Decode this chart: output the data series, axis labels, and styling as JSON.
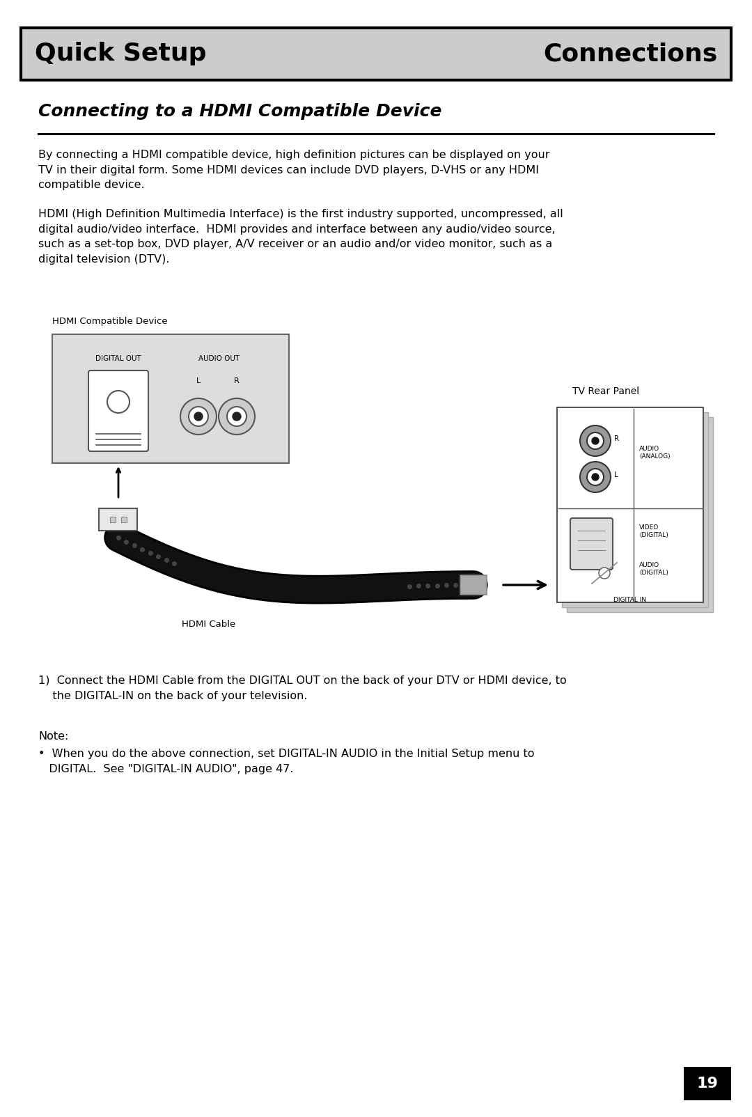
{
  "page_bg": "#ffffff",
  "header_bg": "#cccccc",
  "header_border": "#000000",
  "header_left": "Quick Setup",
  "header_right": "Connections",
  "header_fontsize": 26,
  "section_title": "Connecting to a HDMI Compatible Device",
  "section_title_fontsize": 18,
  "body_fontsize": 11.5,
  "para1": "By connecting a HDMI compatible device, high definition pictures can be displayed on your\nTV in their digital form. Some HDMI devices can include DVD players, D-VHS or any HDMI\ncompatible device.",
  "para2": "HDMI (High Definition Multimedia Interface) is the first industry supported, uncompressed, all\ndigital audio/video interface.  HDMI provides and interface between any audio/video source,\nsuch as a set-top box, DVD player, A/V receiver or an audio and/or video monitor, such as a\ndigital television (DTV).",
  "label_hdmi_device": "HDMI Compatible Device",
  "label_digital_out": "DIGITAL OUT",
  "label_audio_out": "AUDIO OUT",
  "label_L": "L",
  "label_R": "R",
  "label_tv_rear": "TV Rear Panel",
  "label_hdmi_cable": "HDMI Cable",
  "label_audio_analog": "AUDIO\n(ANALOG)",
  "label_video_digital": "VIDEO\n(DIGITAL)",
  "label_audio_digital": "AUDIO\n(DIGITAL)",
  "label_digital_in": "DIGITAL IN",
  "label_R_connector": "R",
  "label_L_connector": "L",
  "step1": "1)  Connect the HDMI Cable from the DIGITAL OUT on the back of your DTV or HDMI device, to\n    the DIGITAL-IN on the back of your television.",
  "note_label": "Note:",
  "note_bullet": "•  When you do the above connection, set DIGITAL-IN AUDIO in the Initial Setup menu to\n   DIGITAL.  See \"DIGITAL-IN AUDIO\", page 47.",
  "page_number": "19",
  "page_number_bg": "#000000",
  "page_number_color": "#ffffff",
  "small_fontsize": 7,
  "label_fontsize": 9.5
}
